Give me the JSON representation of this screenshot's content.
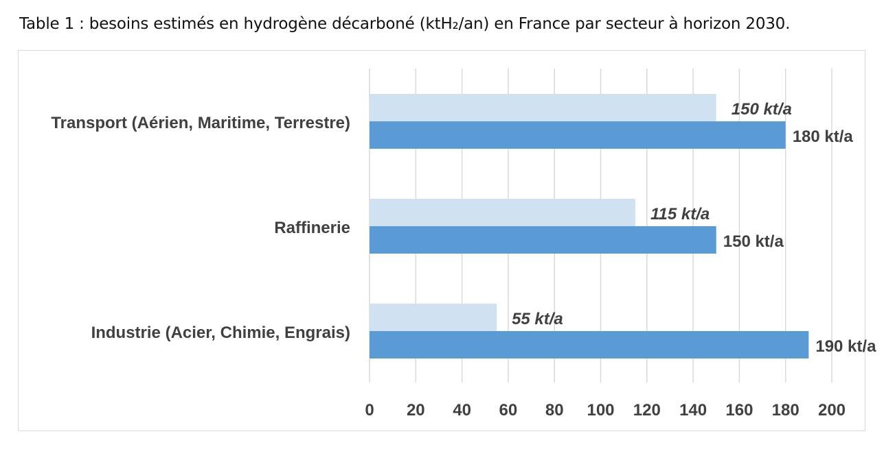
{
  "caption": "Table 1 : besoins estimés en hydrogène décarboné (ktH₂/an) en France par secteur à horizon 2030.",
  "chart_data": {
    "type": "bar",
    "orientation": "horizontal",
    "categories": [
      "Transport (Aérien, Maritime, Terrestre)",
      "Raffinerie",
      "Industrie (Acier, Chimie, Engrais)"
    ],
    "series": [
      {
        "values": [
          150,
          115,
          55
        ],
        "labels": [
          "150 kt/a",
          "115 kt/a",
          "55 kt/a"
        ],
        "color": "#d0e1f2",
        "label_style": "italic"
      },
      {
        "values": [
          180,
          150,
          190
        ],
        "labels": [
          "180 kt/a",
          "150 kt/a",
          "190 kt/a"
        ],
        "color": "#5b9bd5",
        "label_style": "normal"
      }
    ],
    "xlim": [
      0,
      200
    ],
    "xticks": [
      0,
      20,
      40,
      60,
      80,
      100,
      120,
      140,
      160,
      180,
      200
    ],
    "grid": "vertical",
    "legend": "none",
    "gridline_color": "#d9d9d9",
    "label_color": "#404040"
  }
}
